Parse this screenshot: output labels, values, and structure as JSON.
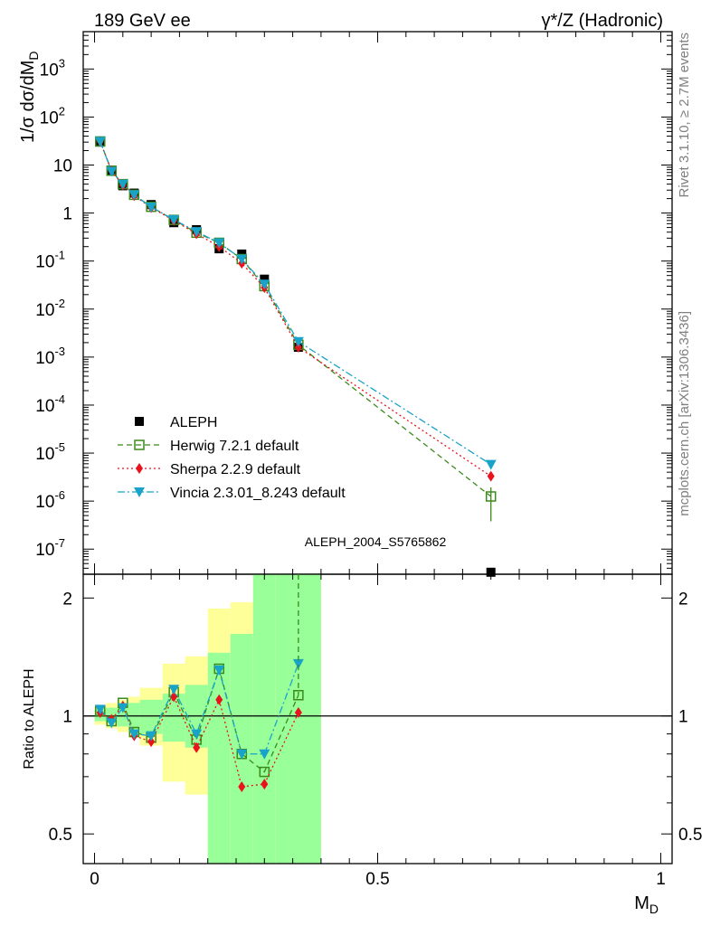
{
  "header": {
    "left_title": "189 GeV ee",
    "right_title": "γ*/Z (Hadronic)"
  },
  "side_notes": {
    "rivet": "Rivet 3.1.10, ≥ 2.7M events",
    "mcplots": "mcplots.cern.ch [arXiv:1306.3436]"
  },
  "watermark": "ALEPH_2004_S5765862",
  "chart_data": [
    {
      "type": "scatter",
      "title": "",
      "ylabel_parts": [
        "1/σ  dσ/dM",
        "D"
      ],
      "xlabel": "",
      "yscale": "log",
      "xlim": [
        -0.02,
        1.02
      ],
      "ylim": [
        3e-08,
        6000
      ],
      "ytick_labels": [
        {
          "value": 1e-07,
          "mantissa": "10",
          "exp": "-7"
        },
        {
          "value": 1e-06,
          "mantissa": "10",
          "exp": "-6"
        },
        {
          "value": 1e-05,
          "mantissa": "10",
          "exp": "-5"
        },
        {
          "value": 0.0001,
          "mantissa": "10",
          "exp": "-4"
        },
        {
          "value": 0.001,
          "mantissa": "10",
          "exp": "-3"
        },
        {
          "value": 0.01,
          "mantissa": "10",
          "exp": "-2"
        },
        {
          "value": 0.1,
          "mantissa": "10",
          "exp": "-1"
        },
        {
          "value": 1,
          "mantissa": "1",
          "exp": ""
        },
        {
          "value": 10,
          "mantissa": "10",
          "exp": ""
        },
        {
          "value": 100,
          "mantissa": "10",
          "exp": "2"
        },
        {
          "value": 1000,
          "mantissa": "10",
          "exp": "3"
        }
      ],
      "legend_position": "bottom-left",
      "x": [
        0.01,
        0.03,
        0.05,
        0.07,
        0.1,
        0.14,
        0.18,
        0.22,
        0.26,
        0.3,
        0.36,
        0.7
      ],
      "series": [
        {
          "name": "ALEPH",
          "color": "#000000",
          "marker": "square-filled",
          "line": "none",
          "values": [
            30,
            7.8,
            3.7,
            2.6,
            1.5,
            0.63,
            0.45,
            0.18,
            0.14,
            0.042,
            0.0016,
            3.3e-08
          ]
        },
        {
          "name": "Herwig 7.2.1 default",
          "color": "#3a8a1a",
          "marker": "square-open",
          "line": "dashed",
          "values": [
            31,
            7.6,
            4.0,
            2.4,
            1.35,
            0.72,
            0.39,
            0.24,
            0.11,
            0.03,
            0.0018,
            1.25e-06
          ]
        },
        {
          "name": "Sherpa 2.2.9 default",
          "color": "#e8131c",
          "marker": "diamond",
          "line": "dotted",
          "values": [
            31,
            7.6,
            3.8,
            2.3,
            1.3,
            0.7,
            0.37,
            0.2,
            0.09,
            0.028,
            0.0016,
            3.3e-06
          ]
        },
        {
          "name": "Vincia 2.3.01_8.243 default",
          "color": "#1aa3c8",
          "marker": "triangle-down",
          "line": "dashdot",
          "values": [
            31,
            7.4,
            4.0,
            2.4,
            1.33,
            0.73,
            0.41,
            0.24,
            0.11,
            0.033,
            0.0021,
            5.8e-06
          ]
        }
      ]
    },
    {
      "type": "scatter",
      "title": "",
      "ylabel": "Ratio to ALEPH",
      "xlabel": "M",
      "xlabel_sub": "D",
      "yscale": "log",
      "xlim": [
        -0.02,
        1.02
      ],
      "ylim": [
        0.42,
        2.3
      ],
      "ytick_labels": [
        {
          "value": 0.5,
          "label": "0.5"
        },
        {
          "value": 1,
          "label": "1"
        },
        {
          "value": 2,
          "label": "2"
        }
      ],
      "xtick_labels": [
        {
          "value": 0,
          "label": "0"
        },
        {
          "value": 0.5,
          "label": "0.5"
        },
        {
          "value": 1,
          "label": "1"
        }
      ],
      "reference_line": 1,
      "uncertainty_bands": [
        {
          "x0": 0.0,
          "x1": 0.02,
          "stat": [
            0.97,
            1.04
          ],
          "total": [
            0.95,
            1.06
          ]
        },
        {
          "x0": 0.02,
          "x1": 0.04,
          "stat": [
            0.96,
            1.05
          ],
          "total": [
            0.93,
            1.08
          ]
        },
        {
          "x0": 0.04,
          "x1": 0.06,
          "stat": [
            0.94,
            1.07
          ],
          "total": [
            0.91,
            1.1
          ]
        },
        {
          "x0": 0.06,
          "x1": 0.08,
          "stat": [
            0.92,
            1.08
          ],
          "total": [
            0.88,
            1.12
          ]
        },
        {
          "x0": 0.08,
          "x1": 0.12,
          "stat": [
            0.9,
            1.1
          ],
          "total": [
            0.84,
            1.18
          ]
        },
        {
          "x0": 0.12,
          "x1": 0.16,
          "stat": [
            0.86,
            1.14
          ],
          "total": [
            0.68,
            1.36
          ]
        },
        {
          "x0": 0.16,
          "x1": 0.2,
          "stat": [
            0.83,
            1.2
          ],
          "total": [
            0.63,
            1.42
          ]
        },
        {
          "x0": 0.2,
          "x1": 0.24,
          "stat": [
            0.42,
            1.45
          ],
          "total": [
            0.42,
            1.88
          ]
        },
        {
          "x0": 0.24,
          "x1": 0.28,
          "stat": [
            0.42,
            1.62
          ],
          "total": [
            0.42,
            1.95
          ]
        },
        {
          "x0": 0.28,
          "x1": 0.32,
          "stat": [
            0.42,
            2.3
          ],
          "total": [
            0.42,
            2.3
          ]
        },
        {
          "x0": 0.32,
          "x1": 0.4,
          "stat": [
            0.42,
            2.3
          ],
          "total": [
            0.42,
            2.3
          ]
        }
      ],
      "x": [
        0.01,
        0.03,
        0.05,
        0.07,
        0.1,
        0.14,
        0.18,
        0.22,
        0.26,
        0.3,
        0.36
      ],
      "series": [
        {
          "name": "Herwig 7.2.1 default",
          "color": "#3a8a1a",
          "marker": "square-open",
          "line": "dashed",
          "values": [
            1.03,
            0.97,
            1.08,
            0.91,
            0.88,
            1.15,
            0.87,
            1.32,
            0.8,
            0.72,
            1.13
          ]
        },
        {
          "name": "Sherpa 2.2.9 default",
          "color": "#e8131c",
          "marker": "diamond",
          "line": "dotted",
          "values": [
            1.02,
            0.98,
            1.06,
            0.89,
            0.86,
            1.12,
            0.83,
            1.1,
            0.66,
            0.67,
            1.02
          ]
        },
        {
          "name": "Vincia 2.3.01_8.243 default",
          "color": "#1aa3c8",
          "marker": "triangle-down",
          "line": "dashdot",
          "values": [
            1.04,
            0.96,
            1.05,
            0.9,
            0.89,
            1.17,
            0.9,
            1.31,
            0.8,
            0.8,
            1.36
          ]
        }
      ]
    }
  ]
}
